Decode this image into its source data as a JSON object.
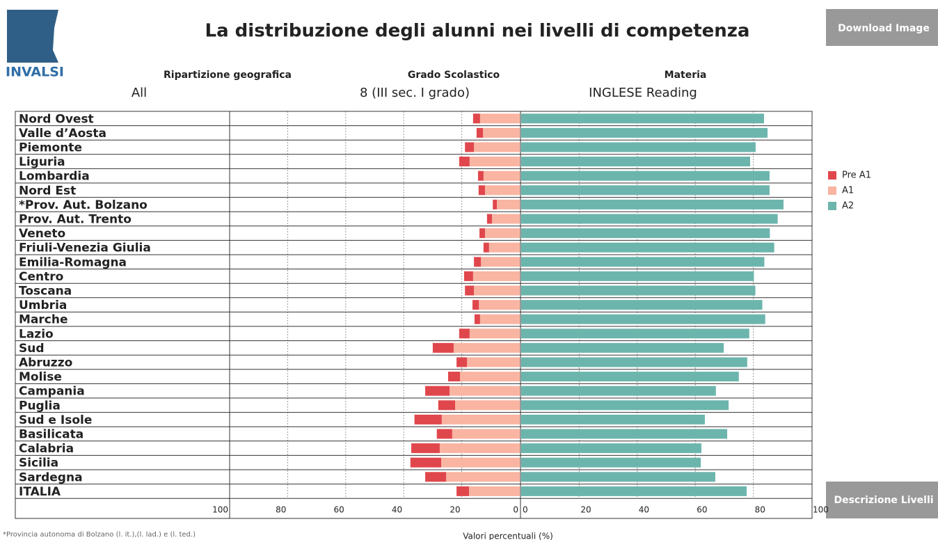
{
  "logo": "INVALSI",
  "buttons": {
    "download": "Download Image",
    "levels": "Descrizione Livelli"
  },
  "filters": [
    {
      "label": "Ripartizione geografica",
      "value": "All"
    },
    {
      "label": "Grado Scolastico",
      "value": "8 (III sec. I grado)"
    },
    {
      "label": "Materia",
      "value": "INGLESE Reading"
    }
  ],
  "footnote": "*Provincia autonoma di Bolzano (l. it.),(l. lad.) e (l. ted.)",
  "chart_data": {
    "type": "diverging-bar",
    "title": "La distribuzione degli alunni nei livelli di competenza",
    "x_label": "Valori percentuali (%)",
    "categories": [
      "Nord Ovest",
      "Valle d’Aosta",
      "Piemonte",
      "Liguria",
      "Lombardia",
      "Nord Est",
      "*Prov. Aut. Bolzano",
      "Prov. Aut. Trento",
      "Veneto",
      "Friuli-Venezia Giulia",
      "Emilia-Romagna",
      "Centro",
      "Toscana",
      "Umbria",
      "Marche",
      "Lazio",
      "Sud",
      "Abruzzo",
      "Molise",
      "Campania",
      "Puglia",
      "Sud e Isole",
      "Basilicata",
      "Calabria",
      "Sicilia",
      "Sardegna",
      "ITALIA"
    ],
    "series": [
      {
        "name": "Pre A1",
        "color": "#e0474c",
        "side": "left",
        "values": [
          2.4,
          2.2,
          3.1,
          3.6,
          1.9,
          2.2,
          1.4,
          1.7,
          1.9,
          1.9,
          2.4,
          3.1,
          3.1,
          2.2,
          1.9,
          3.6,
          7.2,
          3.6,
          4.1,
          8.4,
          5.8,
          9.4,
          5.3,
          9.8,
          10.6,
          7.2,
          4.3
        ]
      },
      {
        "name": "A1",
        "color": "#f9b4a2",
        "side": "left",
        "values": [
          13.7,
          12.7,
          15.8,
          17.3,
          12.5,
          12.0,
          7.9,
          9.6,
          12.0,
          10.6,
          13.4,
          16.1,
          15.8,
          14.1,
          13.7,
          17.3,
          22.8,
          18.2,
          20.6,
          24.2,
          22.3,
          26.9,
          23.3,
          27.6,
          27.1,
          25.4,
          17.5
        ]
      },
      {
        "name": "A2",
        "color": "#6cb5ad",
        "side": "right",
        "values": [
          83.7,
          84.9,
          80.8,
          78.9,
          85.6,
          85.6,
          90.4,
          88.4,
          85.7,
          87.2,
          83.8,
          80.2,
          80.7,
          83.1,
          84.1,
          78.6,
          69.8,
          77.9,
          75.0,
          67.1,
          71.5,
          63.3,
          71.0,
          62.1,
          61.9,
          66.9,
          77.7
        ]
      }
    ],
    "xlim": [
      0,
      100
    ],
    "xticks": [
      0,
      20,
      40,
      60,
      80,
      100
    ],
    "grid": true
  }
}
